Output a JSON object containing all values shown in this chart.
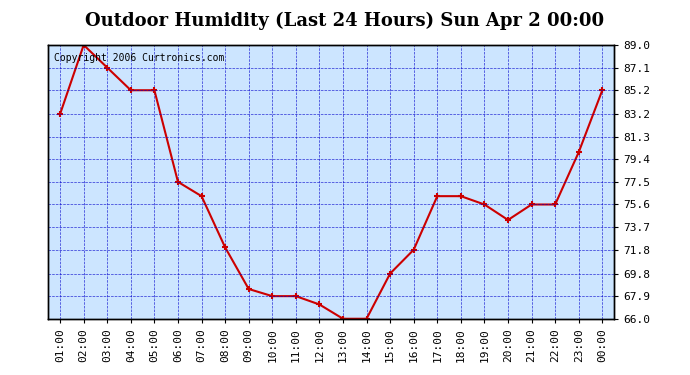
{
  "title": "Outdoor Humidity (Last 24 Hours) Sun Apr 2 00:00",
  "copyright_text": "Copyright 2006 Curtronics.com",
  "x_labels": [
    "01:00",
    "02:00",
    "03:00",
    "04:00",
    "05:00",
    "06:00",
    "07:00",
    "08:00",
    "09:00",
    "10:00",
    "11:00",
    "12:00",
    "13:00",
    "14:00",
    "15:00",
    "16:00",
    "17:00",
    "18:00",
    "19:00",
    "20:00",
    "21:00",
    "22:00",
    "23:00",
    "00:00"
  ],
  "x_values": [
    1,
    2,
    3,
    4,
    5,
    6,
    7,
    8,
    9,
    10,
    11,
    12,
    13,
    14,
    15,
    16,
    17,
    18,
    19,
    20,
    21,
    22,
    23,
    24
  ],
  "y_values": [
    83.2,
    89.0,
    87.1,
    85.2,
    85.2,
    77.5,
    76.3,
    72.0,
    68.5,
    67.9,
    67.9,
    67.2,
    66.0,
    66.0,
    69.8,
    71.8,
    76.3,
    76.3,
    75.6,
    74.3,
    75.6,
    75.6,
    80.0,
    85.2
  ],
  "ylim": [
    66.0,
    89.0
  ],
  "yticks": [
    89.0,
    87.1,
    85.2,
    83.2,
    81.3,
    79.4,
    77.5,
    75.6,
    73.7,
    71.8,
    69.8,
    67.9,
    66.0
  ],
  "line_color": "#cc0000",
  "marker_color": "#cc0000",
  "bg_color": "#cce5ff",
  "plot_bg": "#cce5ff",
  "outer_bg": "#ffffff",
  "grid_color": "#0000cc",
  "title_color": "#000000",
  "axis_label_color": "#000000",
  "title_fontsize": 13,
  "tick_fontsize": 8,
  "copyright_fontsize": 7
}
